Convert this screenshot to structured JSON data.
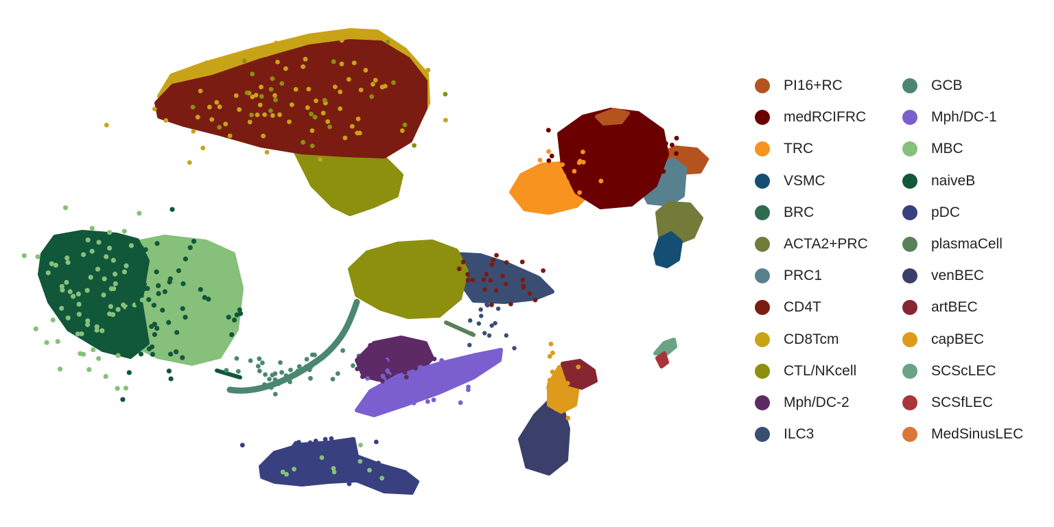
{
  "chart_data": {
    "type": "scatter",
    "title": "",
    "xlabel": "",
    "ylabel": "",
    "grid": false,
    "axes_visible": false,
    "legend_placement": "right",
    "legend_columns": 2,
    "series": [
      {
        "name": "PI16+RC",
        "color": "#B5531E"
      },
      {
        "name": "medRCIFRC",
        "color": "#6B0000"
      },
      {
        "name": "TRC",
        "color": "#F7931E"
      },
      {
        "name": "VSMC",
        "color": "#154E73"
      },
      {
        "name": "BRC",
        "color": "#2F6B4F"
      },
      {
        "name": "ACTA2+PRC",
        "color": "#737B3A"
      },
      {
        "name": "PRC1",
        "color": "#58818F"
      },
      {
        "name": "CD4T",
        "color": "#7A1C12"
      },
      {
        "name": "CD8Tcm",
        "color": "#C9A317"
      },
      {
        "name": "CTL/NKcell",
        "color": "#8C900E"
      },
      {
        "name": "Mph/DC-2",
        "color": "#5E2A66"
      },
      {
        "name": "ILC3",
        "color": "#3A4E74"
      },
      {
        "name": "GCB",
        "color": "#4B8770"
      },
      {
        "name": "Mph/DC-1",
        "color": "#7B5FCF"
      },
      {
        "name": "MBC",
        "color": "#86C07A"
      },
      {
        "name": "naiveB",
        "color": "#11573A"
      },
      {
        "name": "pDC",
        "color": "#38407F"
      },
      {
        "name": "plasmaCell",
        "color": "#5B7F58"
      },
      {
        "name": "venBEC",
        "color": "#3A4069"
      },
      {
        "name": "artBEC",
        "color": "#862631"
      },
      {
        "name": "capBEC",
        "color": "#DE9A1A"
      },
      {
        "name": "SCScLEC",
        "color": "#6AA386"
      },
      {
        "name": "SCSfLEC",
        "color": "#A8353A"
      },
      {
        "name": "MedSinusLEC",
        "color": "#D9773A"
      }
    ]
  }
}
